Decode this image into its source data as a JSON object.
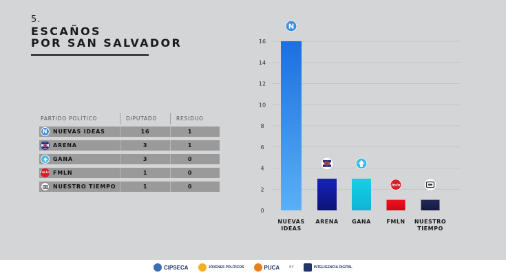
{
  "heading": {
    "number": "5.",
    "line1": "ESCAÑOS",
    "line2": "POR SAN SALVADOR"
  },
  "table": {
    "headers": [
      "PARTIDO POLÍTICO",
      "DIPUTADO",
      "RESIDUO"
    ],
    "rows": [
      {
        "party": "NUEVAS IDEAS",
        "diputados": "16",
        "residuo": "1",
        "icon": "nuevas-ideas-logo-icon",
        "color": "#3d8fe0"
      },
      {
        "party": "ARENA",
        "diputados": "3",
        "residuo": "1",
        "icon": "arena-logo-icon",
        "color": "#1f2f8a"
      },
      {
        "party": "GANA",
        "diputados": "3",
        "residuo": "0",
        "icon": "gana-logo-icon",
        "color": "#46b8e8"
      },
      {
        "party": "FMLN",
        "diputados": "1",
        "residuo": "0",
        "icon": "fmln-logo-icon",
        "color": "#d42027"
      },
      {
        "party": "NUESTRO TIEMPO",
        "diputados": "1",
        "residuo": "0",
        "icon": "nuestro-tiempo-logo-icon",
        "color": "#ffffff"
      }
    ]
  },
  "chart_data": {
    "type": "bar",
    "categories": [
      "NUEVAS\nIDEAS",
      "ARENA",
      "GANA",
      "FMLN",
      "NUESTRO\nTIEMPO"
    ],
    "values": [
      16,
      3,
      3,
      1,
      1
    ],
    "colors": [
      "#2f7fe6",
      "#1620a8",
      "#18c6e0",
      "#e8101c",
      "#1b1f50"
    ],
    "ylim": [
      0,
      16
    ],
    "yticks": [
      0,
      2,
      4,
      6,
      8,
      10,
      12,
      14,
      16
    ],
    "grid": true,
    "title": "",
    "xlabel": "",
    "ylabel": ""
  },
  "footer": {
    "logos": [
      "CIPSECA",
      "JÓVENES POLÍTICOS",
      "PUCA",
      "INTELIGENCIA DIGITAL"
    ],
    "by": "BY"
  }
}
